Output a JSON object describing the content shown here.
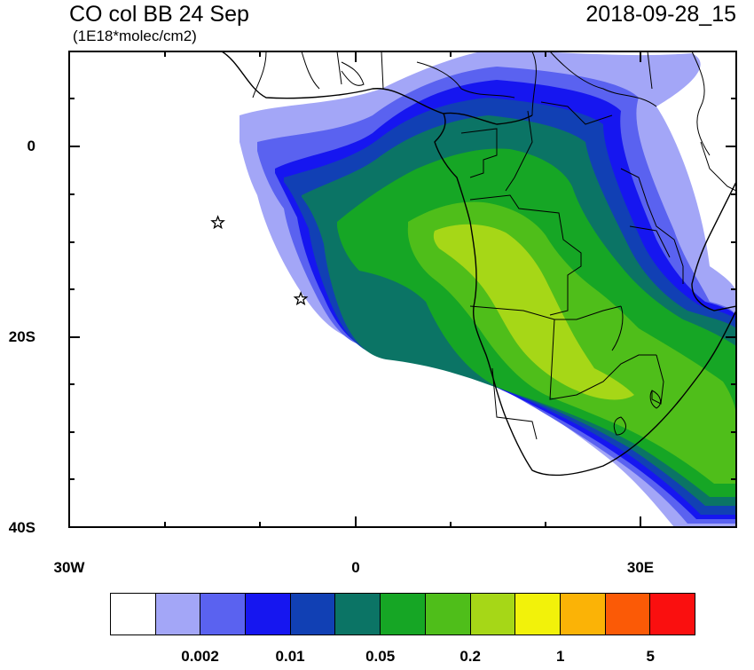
{
  "header": {
    "title": "CO col BB 24 Sep",
    "units": "(1E18*molec/cm2)",
    "timestamp": "2018-09-28_15"
  },
  "axes": {
    "y_labels": [
      "0",
      "20S",
      "40S"
    ],
    "x_labels": [
      "30W",
      "0",
      "30E"
    ]
  },
  "colorbar": {
    "colors": [
      "#ffffff",
      "#a3a6f7",
      "#5a62f0",
      "#1616f0",
      "#1140b4",
      "#0b7465",
      "#16a625",
      "#4fbe1a",
      "#a6d717",
      "#f2f20a",
      "#fbb306",
      "#fb5a06",
      "#fa0f0f"
    ],
    "labels": [
      "0.002",
      "0.01",
      "0.05",
      "0.2",
      "1",
      "5"
    ]
  },
  "markers": [
    {
      "name": "star",
      "lon": -14.4,
      "lat": -8.0
    },
    {
      "name": "star",
      "lon": -5.7,
      "lat": -16.0
    }
  ]
}
